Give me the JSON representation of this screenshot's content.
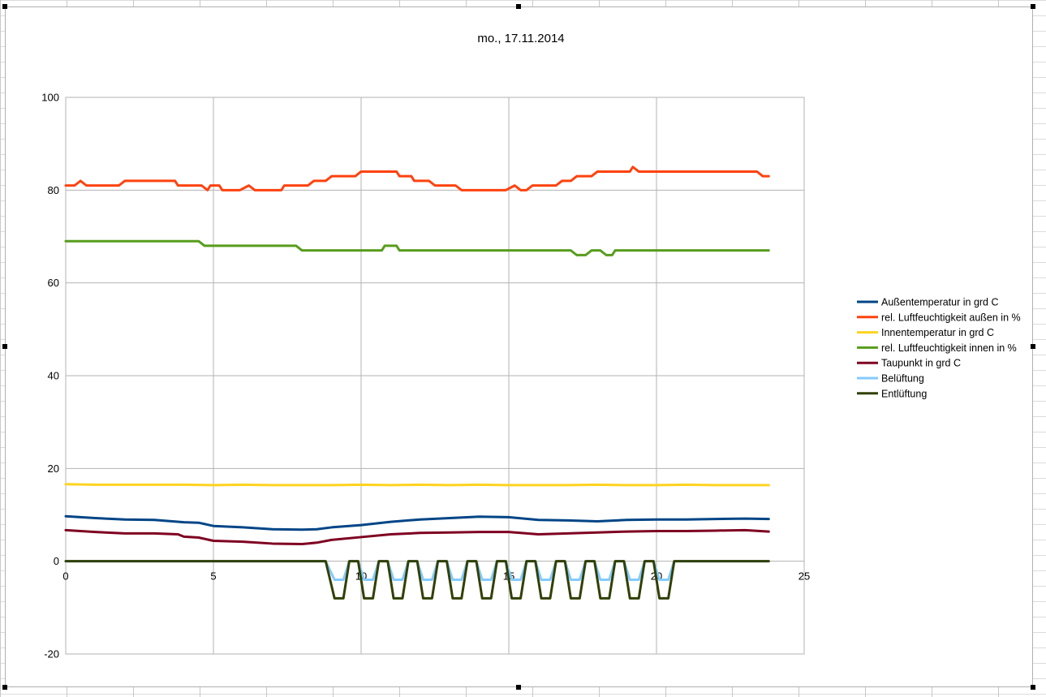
{
  "chart_data": {
    "type": "line",
    "title": "mo., 17.11.2014",
    "xlim": [
      0,
      25
    ],
    "ylim": [
      -20,
      100
    ],
    "x_ticks": [
      "0",
      "5",
      "10",
      "15",
      "20",
      "25"
    ],
    "y_ticks": [
      "-20",
      "0",
      "20",
      "40",
      "60",
      "80",
      "100"
    ],
    "grid": true,
    "legend_position": "right",
    "series": [
      {
        "name": "Außentemperatur in grd C",
        "color": "#004586",
        "points": [
          [
            0,
            9.7
          ],
          [
            1,
            9.3
          ],
          [
            2,
            9.0
          ],
          [
            3,
            8.9
          ],
          [
            4,
            8.4
          ],
          [
            4.5,
            8.3
          ],
          [
            5,
            7.6
          ],
          [
            6,
            7.3
          ],
          [
            7,
            6.9
          ],
          [
            8,
            6.8
          ],
          [
            8.5,
            6.9
          ],
          [
            9,
            7.3
          ],
          [
            10,
            7.8
          ],
          [
            11,
            8.5
          ],
          [
            12,
            9.0
          ],
          [
            13,
            9.3
          ],
          [
            14,
            9.6
          ],
          [
            15,
            9.5
          ],
          [
            16,
            8.9
          ],
          [
            17,
            8.8
          ],
          [
            18,
            8.6
          ],
          [
            19,
            8.9
          ],
          [
            20,
            9.0
          ],
          [
            21,
            9.0
          ],
          [
            22,
            9.1
          ],
          [
            23,
            9.2
          ],
          [
            23.8,
            9.1
          ]
        ]
      },
      {
        "name": "rel. Luftfeuchtigkeit außen in %",
        "color": "#ff420e",
        "points": [
          [
            0,
            81
          ],
          [
            0.3,
            81
          ],
          [
            0.5,
            82
          ],
          [
            0.7,
            81
          ],
          [
            1.8,
            81
          ],
          [
            2,
            82
          ],
          [
            3.7,
            82
          ],
          [
            3.8,
            81
          ],
          [
            4.6,
            81
          ],
          [
            4.8,
            80
          ],
          [
            4.9,
            81
          ],
          [
            5.2,
            81
          ],
          [
            5.3,
            80
          ],
          [
            5.9,
            80
          ],
          [
            6.2,
            81
          ],
          [
            6.4,
            80
          ],
          [
            7.3,
            80
          ],
          [
            7.4,
            81
          ],
          [
            8.2,
            81
          ],
          [
            8.4,
            82
          ],
          [
            8.8,
            82
          ],
          [
            9,
            83
          ],
          [
            9.8,
            83
          ],
          [
            10,
            84
          ],
          [
            11.2,
            84
          ],
          [
            11.3,
            83
          ],
          [
            11.7,
            83
          ],
          [
            11.8,
            82
          ],
          [
            12.3,
            82
          ],
          [
            12.5,
            81
          ],
          [
            13.2,
            81
          ],
          [
            13.4,
            80
          ],
          [
            14.9,
            80
          ],
          [
            15.2,
            81
          ],
          [
            15.4,
            80
          ],
          [
            15.6,
            80
          ],
          [
            15.8,
            81
          ],
          [
            16.6,
            81
          ],
          [
            16.8,
            82
          ],
          [
            17.1,
            82
          ],
          [
            17.3,
            83
          ],
          [
            17.8,
            83
          ],
          [
            18,
            84
          ],
          [
            19.1,
            84
          ],
          [
            19.2,
            85
          ],
          [
            19.4,
            84
          ],
          [
            23.4,
            84
          ],
          [
            23.6,
            83
          ],
          [
            23.8,
            83
          ]
        ]
      },
      {
        "name": "Innentemperatur in grd C",
        "color": "#ffd320",
        "points": [
          [
            0,
            16.6
          ],
          [
            1,
            16.5
          ],
          [
            2,
            16.5
          ],
          [
            3,
            16.5
          ],
          [
            4,
            16.5
          ],
          [
            5,
            16.4
          ],
          [
            6,
            16.5
          ],
          [
            7,
            16.4
          ],
          [
            8,
            16.4
          ],
          [
            9,
            16.4
          ],
          [
            10,
            16.5
          ],
          [
            11,
            16.4
          ],
          [
            12,
            16.5
          ],
          [
            13,
            16.4
          ],
          [
            14,
            16.5
          ],
          [
            15,
            16.4
          ],
          [
            16,
            16.4
          ],
          [
            17,
            16.4
          ],
          [
            18,
            16.5
          ],
          [
            19,
            16.4
          ],
          [
            20,
            16.4
          ],
          [
            21,
            16.5
          ],
          [
            22,
            16.4
          ],
          [
            23,
            16.4
          ],
          [
            23.8,
            16.4
          ]
        ]
      },
      {
        "name": "rel. Luftfeuchtigkeit innen in %",
        "color": "#579d1c",
        "points": [
          [
            0,
            69
          ],
          [
            4.5,
            69
          ],
          [
            4.7,
            68
          ],
          [
            7.8,
            68
          ],
          [
            8,
            67
          ],
          [
            10.7,
            67
          ],
          [
            10.8,
            68
          ],
          [
            11.2,
            68
          ],
          [
            11.3,
            67
          ],
          [
            17.1,
            67
          ],
          [
            17.3,
            66
          ],
          [
            17.6,
            66
          ],
          [
            17.8,
            67
          ],
          [
            18.1,
            67
          ],
          [
            18.3,
            66
          ],
          [
            18.5,
            66
          ],
          [
            18.6,
            67
          ],
          [
            23.8,
            67
          ]
        ]
      },
      {
        "name": "Taupunkt in grd C",
        "color": "#7e0021",
        "points": [
          [
            0,
            6.7
          ],
          [
            1,
            6.3
          ],
          [
            2,
            6.0
          ],
          [
            3,
            6.0
          ],
          [
            3.8,
            5.8
          ],
          [
            4,
            5.3
          ],
          [
            4.5,
            5.1
          ],
          [
            5,
            4.4
          ],
          [
            6,
            4.2
          ],
          [
            7,
            3.8
          ],
          [
            8,
            3.7
          ],
          [
            8.5,
            4.0
          ],
          [
            9,
            4.6
          ],
          [
            10,
            5.2
          ],
          [
            11,
            5.8
          ],
          [
            12,
            6.1
          ],
          [
            13,
            6.2
          ],
          [
            14,
            6.3
          ],
          [
            15,
            6.3
          ],
          [
            16,
            5.8
          ],
          [
            17,
            6.0
          ],
          [
            18,
            6.2
          ],
          [
            19,
            6.4
          ],
          [
            20,
            6.5
          ],
          [
            21,
            6.5
          ],
          [
            22,
            6.6
          ],
          [
            23,
            6.7
          ],
          [
            23.8,
            6.4
          ]
        ]
      },
      {
        "name": "Belüftung",
        "color": "#83caff",
        "points": [
          [
            0,
            0
          ],
          [
            8.8,
            0
          ],
          [
            9.1,
            -4
          ],
          [
            9.4,
            -4
          ],
          [
            9.6,
            0
          ],
          [
            9.9,
            0
          ],
          [
            10.1,
            -4
          ],
          [
            10.4,
            -4
          ],
          [
            10.6,
            0
          ],
          [
            10.9,
            0
          ],
          [
            11.1,
            -4
          ],
          [
            11.4,
            -4
          ],
          [
            11.6,
            0
          ],
          [
            11.9,
            0
          ],
          [
            12.1,
            -4
          ],
          [
            12.4,
            -4
          ],
          [
            12.6,
            0
          ],
          [
            12.9,
            0
          ],
          [
            13.1,
            -4
          ],
          [
            13.4,
            -4
          ],
          [
            13.6,
            0
          ],
          [
            13.9,
            0
          ],
          [
            14.1,
            -4
          ],
          [
            14.4,
            -4
          ],
          [
            14.6,
            0
          ],
          [
            14.9,
            0
          ],
          [
            15.1,
            -4
          ],
          [
            15.4,
            -4
          ],
          [
            15.6,
            0
          ],
          [
            15.9,
            0
          ],
          [
            16.1,
            -4
          ],
          [
            16.4,
            -4
          ],
          [
            16.6,
            0
          ],
          [
            16.9,
            0
          ],
          [
            17.1,
            -4
          ],
          [
            17.4,
            -4
          ],
          [
            17.6,
            0
          ],
          [
            17.9,
            0
          ],
          [
            18.1,
            -4
          ],
          [
            18.4,
            -4
          ],
          [
            18.6,
            0
          ],
          [
            18.9,
            0
          ],
          [
            19.1,
            -4
          ],
          [
            19.4,
            -4
          ],
          [
            19.6,
            0
          ],
          [
            19.9,
            0
          ],
          [
            20.1,
            -4
          ],
          [
            20.4,
            -4
          ],
          [
            20.6,
            0
          ],
          [
            23.8,
            0
          ]
        ]
      },
      {
        "name": "Entlüftung",
        "color": "#314004",
        "points": [
          [
            0,
            0
          ],
          [
            8.8,
            0
          ],
          [
            9.1,
            -8
          ],
          [
            9.4,
            -8
          ],
          [
            9.6,
            0
          ],
          [
            9.9,
            0
          ],
          [
            10.1,
            -8
          ],
          [
            10.4,
            -8
          ],
          [
            10.6,
            0
          ],
          [
            10.9,
            0
          ],
          [
            11.1,
            -8
          ],
          [
            11.4,
            -8
          ],
          [
            11.6,
            0
          ],
          [
            11.9,
            0
          ],
          [
            12.1,
            -8
          ],
          [
            12.4,
            -8
          ],
          [
            12.6,
            0
          ],
          [
            12.9,
            0
          ],
          [
            13.1,
            -8
          ],
          [
            13.4,
            -8
          ],
          [
            13.6,
            0
          ],
          [
            13.9,
            0
          ],
          [
            14.1,
            -8
          ],
          [
            14.4,
            -8
          ],
          [
            14.6,
            0
          ],
          [
            14.9,
            0
          ],
          [
            15.1,
            -8
          ],
          [
            15.4,
            -8
          ],
          [
            15.6,
            0
          ],
          [
            15.9,
            0
          ],
          [
            16.1,
            -8
          ],
          [
            16.4,
            -8
          ],
          [
            16.6,
            0
          ],
          [
            16.9,
            0
          ],
          [
            17.1,
            -8
          ],
          [
            17.4,
            -8
          ],
          [
            17.6,
            0
          ],
          [
            17.9,
            0
          ],
          [
            18.1,
            -8
          ],
          [
            18.4,
            -8
          ],
          [
            18.6,
            0
          ],
          [
            18.9,
            0
          ],
          [
            19.1,
            -8
          ],
          [
            19.4,
            -8
          ],
          [
            19.6,
            0
          ],
          [
            19.9,
            0
          ],
          [
            20.1,
            -8
          ],
          [
            20.4,
            -8
          ],
          [
            20.6,
            0
          ],
          [
            23.8,
            0
          ]
        ]
      }
    ]
  }
}
